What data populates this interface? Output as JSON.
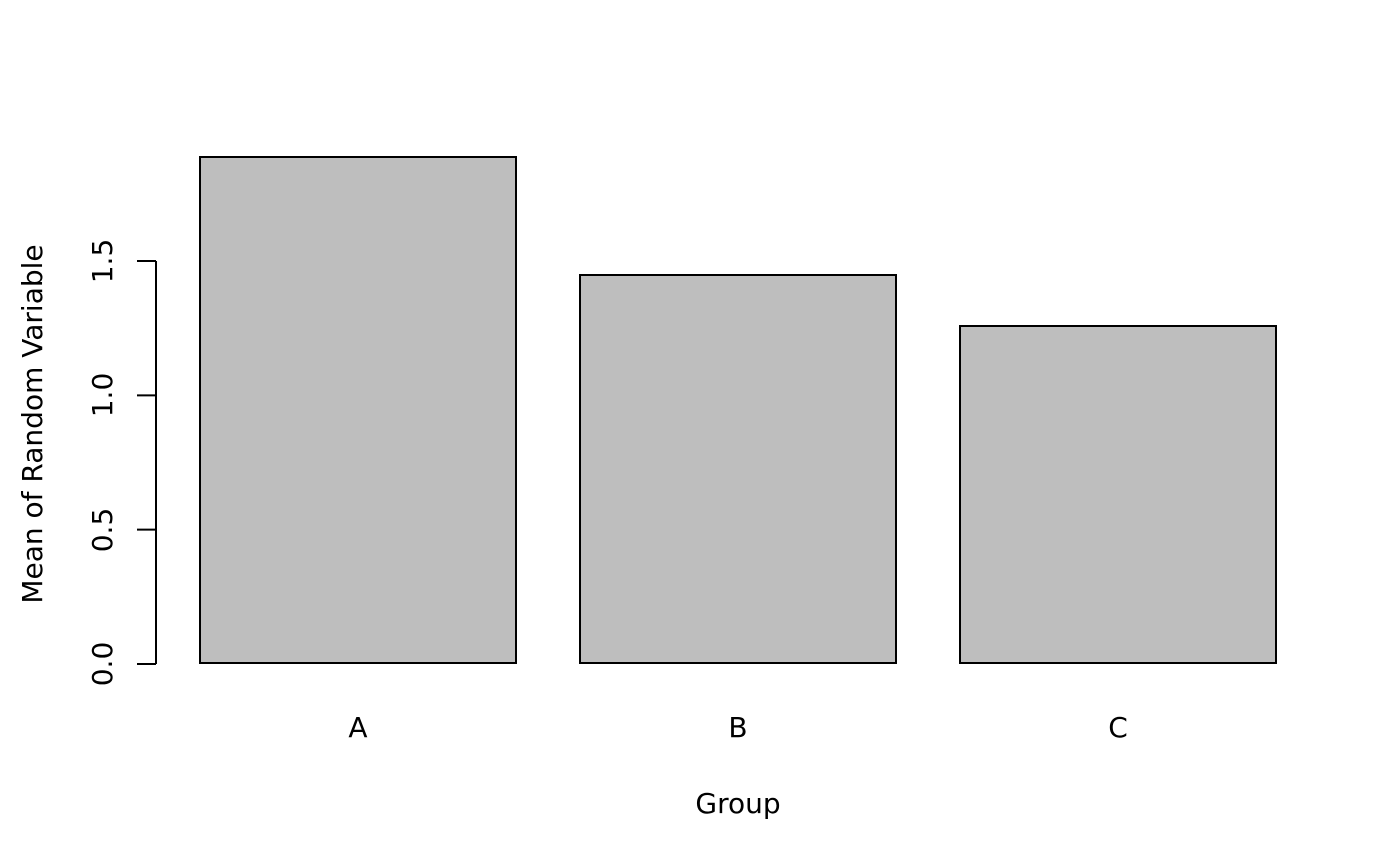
{
  "chart_data": {
    "type": "bar",
    "categories": [
      "A",
      "B",
      "C"
    ],
    "values": [
      1.89,
      1.45,
      1.26
    ],
    "title": "",
    "xlabel": "Group",
    "ylabel": "Mean of Random Variable",
    "ylim": [
      0,
      1.9
    ],
    "yticks": [
      0.0,
      0.5,
      1.0,
      1.5
    ],
    "ytick_labels": [
      "0.0",
      "0.5",
      "1.0",
      "1.5"
    ],
    "grid": false,
    "legend": false,
    "bar_fill": "#bebebe",
    "bar_border": "#000000",
    "axis_color": "#000000",
    "text_color": "#000000",
    "background": "#ffffff"
  }
}
